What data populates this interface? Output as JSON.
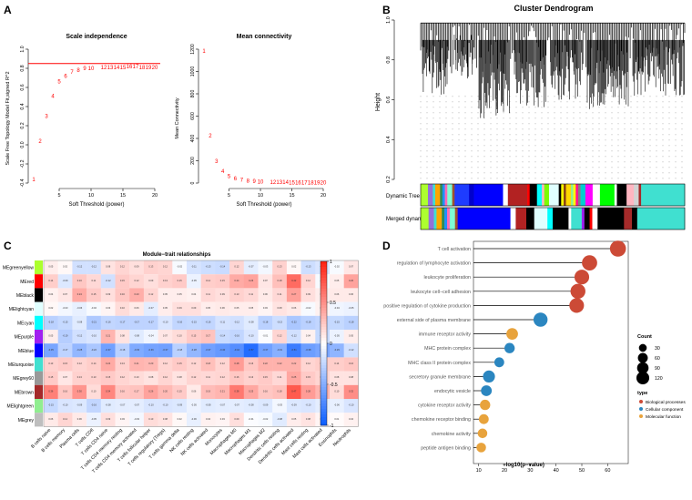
{
  "panel_labels": [
    "A",
    "B",
    "C",
    "D"
  ],
  "chart_data": [
    {
      "type": "scatter",
      "title": "Scale independence",
      "xlabel": "Soft Threshold (power)",
      "ylabel": "Scale Free Topology Model Fit,signed R^2",
      "xlim": [
        1,
        20
      ],
      "ylim": [
        -0.4,
        1.0
      ],
      "xticks": [
        "5",
        "10",
        "15",
        "20"
      ],
      "yticks": [
        "-0.4",
        "-0.2",
        "0.0",
        "0.2",
        "0.4",
        "0.6",
        "0.8",
        "1.0"
      ],
      "threshold_line": 0.85,
      "threshold_color": "#ff0000",
      "point_color": "#ff0000",
      "points": [
        {
          "x": 1,
          "y": -0.36
        },
        {
          "x": 2,
          "y": 0.04
        },
        {
          "x": 3,
          "y": 0.3
        },
        {
          "x": 4,
          "y": 0.51
        },
        {
          "x": 5,
          "y": 0.66
        },
        {
          "x": 6,
          "y": 0.72
        },
        {
          "x": 7,
          "y": 0.76
        },
        {
          "x": 8,
          "y": 0.78
        },
        {
          "x": 9,
          "y": 0.8
        },
        {
          "x": 10,
          "y": 0.8
        },
        {
          "x": 12,
          "y": 0.81
        },
        {
          "x": 13,
          "y": 0.81
        },
        {
          "x": 14,
          "y": 0.81
        },
        {
          "x": 15,
          "y": 0.81
        },
        {
          "x": 16,
          "y": 0.82
        },
        {
          "x": 17,
          "y": 0.82
        },
        {
          "x": 18,
          "y": 0.81
        },
        {
          "x": 19,
          "y": 0.81
        },
        {
          "x": 20,
          "y": 0.81
        }
      ]
    },
    {
      "type": "scatter",
      "title": "Mean connectivity",
      "xlabel": "Soft Threshold (power)",
      "ylabel": "Mean Connectivity",
      "xlim": [
        1,
        20
      ],
      "ylim": [
        0,
        1200
      ],
      "xticks": [
        "5",
        "10",
        "15",
        "20"
      ],
      "yticks": [
        "0",
        "200",
        "400",
        "600",
        "800",
        "1000",
        "1200"
      ],
      "point_color": "#ff0000",
      "points": [
        {
          "x": 1,
          "y": 1185
        },
        {
          "x": 2,
          "y": 425
        },
        {
          "x": 3,
          "y": 195
        },
        {
          "x": 4,
          "y": 105
        },
        {
          "x": 5,
          "y": 62
        },
        {
          "x": 6,
          "y": 42
        },
        {
          "x": 7,
          "y": 30
        },
        {
          "x": 8,
          "y": 22
        },
        {
          "x": 9,
          "y": 17
        },
        {
          "x": 10,
          "y": 13
        },
        {
          "x": 12,
          "y": 9
        },
        {
          "x": 13,
          "y": 8
        },
        {
          "x": 14,
          "y": 7
        },
        {
          "x": 15,
          "y": 6
        },
        {
          "x": 16,
          "y": 5
        },
        {
          "x": 17,
          "y": 5
        },
        {
          "x": 18,
          "y": 4
        },
        {
          "x": 19,
          "y": 4
        },
        {
          "x": 20,
          "y": 3
        }
      ]
    },
    {
      "type": "heatmap",
      "title": "Module−trait relationships",
      "rows": [
        "MEgreenyellow",
        "MEred",
        "MEblack",
        "MElightcyan",
        "MEcyan",
        "MEpurple",
        "MEblue",
        "MEturquoise",
        "MEgrey60",
        "MEbrown",
        "MElightgreen",
        "MEgrey"
      ],
      "row_colors": [
        "#adff2f",
        "#ff0000",
        "#000000",
        "#e0ffff",
        "#00ffff",
        "#a020f0",
        "#0000ff",
        "#40e0d0",
        "#999999",
        "#a52a2a",
        "#90ee90",
        "#bebebe"
      ],
      "columns": [
        "B cells naive",
        "B cells memory",
        "Plasma cells",
        "T cells CD8",
        "T cells CD4 naive",
        "T cells CD4 memory resting",
        "T cells CD4 memory activated",
        "T cells follicular helper",
        "T cells regulatory (Tregs)",
        "T cells gamma delta",
        "NK cells resting",
        "NK cells activated",
        "Monocytes",
        "Macrophages M0",
        "Macrophages M1",
        "Macrophages M2",
        "Dendritic cells resting",
        "Dendritic cells activated",
        "Mast cells resting",
        "Mast cells activated",
        "Eosinophils",
        "Neutrophils"
      ],
      "colorbar_ticks": [
        "1",
        "0.5",
        "0",
        "-0.5",
        "-1"
      ],
      "values": [
        [
          0.05,
          0.02,
          -0.12,
          -0.12,
          0.08,
          0.12,
          0.09,
          0.13,
          0.12,
          -0.02,
          -0.11,
          -0.13,
          -0.14,
          0.12,
          -0.07,
          -0.03,
          0.13,
          0.02,
          -0.13,
          -0.1,
          -0.02,
          0.07
        ],
        [
          0.14,
          -0.09,
          0.16,
          0.11,
          -0.12,
          0.15,
          0.12,
          0.09,
          0.13,
          0.15,
          -0.05,
          0.14,
          0.15,
          0.24,
          0.26,
          0.07,
          0.18,
          0.42,
          0.12,
          -0.02,
          0.05,
          0.26
        ],
        [
          0.04,
          0.07,
          0.24,
          0.15,
          0.09,
          0.16,
          0.23,
          0.12,
          0.05,
          0.05,
          0.04,
          0.11,
          0.09,
          0.13,
          0.11,
          0.06,
          0.11,
          0.27,
          0.09,
          0.05,
          0.06,
          0.06
        ],
        [
          0.02,
          -0.03,
          -0.06,
          -0.02,
          0.03,
          0.1,
          0.06,
          -0.07,
          0.05,
          0.09,
          0.09,
          0.05,
          0.06,
          0.05,
          0.05,
          0.03,
          0.08,
          0.06,
          -0.02,
          0.04,
          -0.04,
          -0.05
        ],
        [
          -0.18,
          -0.15,
          -0.08,
          -0.21,
          -0.16,
          -0.17,
          -0.17,
          -0.17,
          -0.1,
          -0.16,
          -0.15,
          -0.16,
          -0.11,
          -0.12,
          -0.08,
          -0.18,
          -0.13,
          -0.22,
          -0.18,
          -0.16,
          -0.15,
          -0.18
        ],
        [
          0.05,
          -0.19,
          -0.12,
          -0.1,
          0.21,
          0.08,
          -0.08,
          -0.04,
          0.07,
          0.1,
          0.15,
          0.17,
          -0.14,
          -0.16,
          -0.1,
          -0.01,
          0.12,
          -0.12,
          0.04,
          -0.15,
          -0.05,
          0.05
        ],
        [
          -0.35,
          -0.17,
          -0.28,
          -0.22,
          -0.37,
          -0.18,
          -0.33,
          -0.36,
          -0.37,
          -0.18,
          -0.28,
          -0.37,
          -0.4,
          -0.44,
          -0.57,
          -0.37,
          -0.31,
          -0.51,
          -0.38,
          -0.35,
          -0.29,
          -0.12
        ],
        [
          0.13,
          0.15,
          0.12,
          0.14,
          0.24,
          0.13,
          0.21,
          0.2,
          0.12,
          0.15,
          0.12,
          0.18,
          0.12,
          0.28,
          0.16,
          0.22,
          0.22,
          0.22,
          0.12,
          0.14,
          0.14,
          0.16
        ],
        [
          0.15,
          0.07,
          0.13,
          0.13,
          0.15,
          0.12,
          0.1,
          0.08,
          0.12,
          0.08,
          0.12,
          0.11,
          0.12,
          0.16,
          0.13,
          0.15,
          0.11,
          0.25,
          0.15,
          0.12,
          0.08,
          0.08
        ],
        [
          0.36,
          0.16,
          0.3,
          0.1,
          0.34,
          0.16,
          0.17,
          0.26,
          0.2,
          0.15,
          0.06,
          0.19,
          0.21,
          0.38,
          0.25,
          0.16,
          0.18,
          0.47,
          0.28,
          0.21,
          0.1,
          0.32
        ],
        [
          -0.15,
          -0.1,
          -0.09,
          -0.16,
          -0.08,
          -0.07,
          -0.07,
          -0.1,
          -0.1,
          -0.09,
          -0.05,
          -0.08,
          -0.07,
          -0.07,
          -0.08,
          -0.09,
          -0.03,
          -0.09,
          -0.1,
          -0.07,
          -0.06,
          -0.1
        ],
        [
          0.06,
          0.12,
          0.06,
          -0.05,
          0.09,
          0.03,
          -0.03,
          0.1,
          0.08,
          0.02,
          -0.06,
          0.04,
          0.03,
          0.09,
          -0.01,
          -0.02,
          -0.08,
          0.05,
          0.08,
          0.03,
          0.01,
          0.04
        ]
      ]
    },
    {
      "type": "scatter",
      "subtype": "lollipop",
      "xlabel": "−log10(p−value)",
      "xlim": [
        8,
        68
      ],
      "xticks": [
        "10",
        "20",
        "30",
        "40",
        "50",
        "60"
      ],
      "terms": [
        {
          "label": "T cell activation",
          "value": 64,
          "type": "Biological processes",
          "count": 120
        },
        {
          "label": "regulation of lymphocyte activation",
          "value": 53,
          "type": "Biological processes",
          "count": 105
        },
        {
          "label": "leukocyte proliferation",
          "value": 50,
          "type": "Biological processes",
          "count": 95
        },
        {
          "label": "leukocyte cell−cell adhesion",
          "value": 48.5,
          "type": "Biological processes",
          "count": 100
        },
        {
          "label": "positive regulation of cytokine production",
          "value": 48,
          "type": "Biological processes",
          "count": 95
        },
        {
          "label": "external side of plasma membrane",
          "value": 34,
          "type": "Cellular component",
          "count": 85
        },
        {
          "label": "immune receptor activity",
          "value": 23,
          "type": "Molecular function",
          "count": 50
        },
        {
          "label": "MHC protein complex",
          "value": 22,
          "type": "Cellular component",
          "count": 35
        },
        {
          "label": "MHC class II protein complex",
          "value": 18,
          "type": "Cellular component",
          "count": 30
        },
        {
          "label": "secretory granule membrane",
          "value": 14,
          "type": "Cellular component",
          "count": 55
        },
        {
          "label": "endocytic vesicle",
          "value": 13,
          "type": "Cellular component",
          "count": 40
        },
        {
          "label": "cytokine receptor activity",
          "value": 12.5,
          "type": "Molecular function",
          "count": 35
        },
        {
          "label": "chemokine receptor binding",
          "value": 12,
          "type": "Molecular function",
          "count": 30
        },
        {
          "label": "chemokine activity",
          "value": 11.5,
          "type": "Molecular function",
          "count": 28
        },
        {
          "label": "peptide antigen binding",
          "value": 11,
          "type": "Molecular function",
          "count": 28
        }
      ],
      "legend_count_title": "Count",
      "legend_count_values": [
        30,
        60,
        90,
        120
      ],
      "legend_type_title": "type",
      "types": [
        {
          "name": "Biological processes",
          "color": "#cc4a36"
        },
        {
          "name": "Cellular component",
          "color": "#2b86c0"
        },
        {
          "name": "Molecular function",
          "color": "#e8a33c"
        }
      ]
    }
  ],
  "dendrogram": {
    "title": "Cluster Dendrogram",
    "ylabel": "Height",
    "yticks": [
      "0.2",
      "0.4",
      "0.6",
      "0.8",
      "1.0"
    ],
    "ylim": [
      0.2,
      1.0
    ],
    "color_bars": [
      "Dynamic Tree Cut",
      "Merged dynamic 0.25"
    ],
    "segments_dynamic": [
      {
        "w": 3,
        "c": "#adff2f"
      },
      {
        "w": 2,
        "c": "#9370db"
      },
      {
        "w": 1,
        "c": "#40e0d0"
      },
      {
        "w": 2,
        "c": "#ffa500"
      },
      {
        "w": 1,
        "c": "#2e8b57"
      },
      {
        "w": 1,
        "c": "#1e90ff"
      },
      {
        "w": 1,
        "c": "#ff69b4"
      },
      {
        "w": 2,
        "c": "#7fffd4"
      },
      {
        "w": 1,
        "c": "#a0522d"
      },
      {
        "w": 6,
        "c": "#1e3cff"
      },
      {
        "w": 2,
        "c": "#0000cd"
      },
      {
        "w": 12,
        "c": "#0000ff"
      },
      {
        "w": 2,
        "c": "#ffffff"
      },
      {
        "w": 8,
        "c": "#b22222"
      },
      {
        "w": 1,
        "c": "#ff0000"
      },
      {
        "w": 3,
        "c": "#000000"
      },
      {
        "w": 2,
        "c": "#00ffff"
      },
      {
        "w": 1,
        "c": "#ffb6c1"
      },
      {
        "w": 2,
        "c": "#7cfc00"
      },
      {
        "w": 4,
        "c": "#e0ffff"
      },
      {
        "w": 1,
        "c": "#000000"
      },
      {
        "w": 1,
        "c": "#ffff00"
      },
      {
        "w": 1,
        "c": "#8b4513"
      },
      {
        "w": 2,
        "c": "#ffd700"
      },
      {
        "w": 1,
        "c": "#90ee90"
      },
      {
        "w": 1,
        "c": "#ffff00"
      },
      {
        "w": 1,
        "c": "#ff1493"
      },
      {
        "w": 1,
        "c": "#808080"
      },
      {
        "w": 2,
        "c": "#00ced1"
      },
      {
        "w": 3,
        "c": "#ff00ff"
      },
      {
        "w": 3,
        "c": "#ffffff"
      },
      {
        "w": 6,
        "c": "#00ff00"
      },
      {
        "w": 1,
        "c": "#ffffff"
      },
      {
        "w": 4,
        "c": "#000000"
      },
      {
        "w": 3,
        "c": "#ffb6c1"
      },
      {
        "w": 2,
        "c": "#d3d3d3"
      },
      {
        "w": 1,
        "c": "#a52a2a"
      },
      {
        "w": 18,
        "c": "#40e0d0"
      }
    ],
    "segments_merged": [
      {
        "w": 3,
        "c": "#adff2f"
      },
      {
        "w": 2,
        "c": "#9370db"
      },
      {
        "w": 1,
        "c": "#40e0d0"
      },
      {
        "w": 2,
        "c": "#ffa500"
      },
      {
        "w": 1,
        "c": "#2e8b57"
      },
      {
        "w": 1,
        "c": "#1e90ff"
      },
      {
        "w": 1,
        "c": "#ff69b4"
      },
      {
        "w": 2,
        "c": "#7fffd4"
      },
      {
        "w": 1,
        "c": "#a0522d"
      },
      {
        "w": 20,
        "c": "#0000ff"
      },
      {
        "w": 2,
        "c": "#ffffff"
      },
      {
        "w": 4,
        "c": "#b22222"
      },
      {
        "w": 3,
        "c": "#000000"
      },
      {
        "w": 5,
        "c": "#e0ffff"
      },
      {
        "w": 2,
        "c": "#00ffff"
      },
      {
        "w": 6,
        "c": "#000000"
      },
      {
        "w": 1,
        "c": "#ffffff"
      },
      {
        "w": 4,
        "c": "#40e0d0"
      },
      {
        "w": 1,
        "c": "#a020f0"
      },
      {
        "w": 2,
        "c": "#000000"
      },
      {
        "w": 1,
        "c": "#ff0000"
      },
      {
        "w": 2,
        "c": "#ffffff"
      },
      {
        "w": 10,
        "c": "#000000"
      },
      {
        "w": 3,
        "c": "#a52a2a"
      },
      {
        "w": 2,
        "c": "#000000"
      },
      {
        "w": 18,
        "c": "#40e0d0"
      }
    ]
  }
}
